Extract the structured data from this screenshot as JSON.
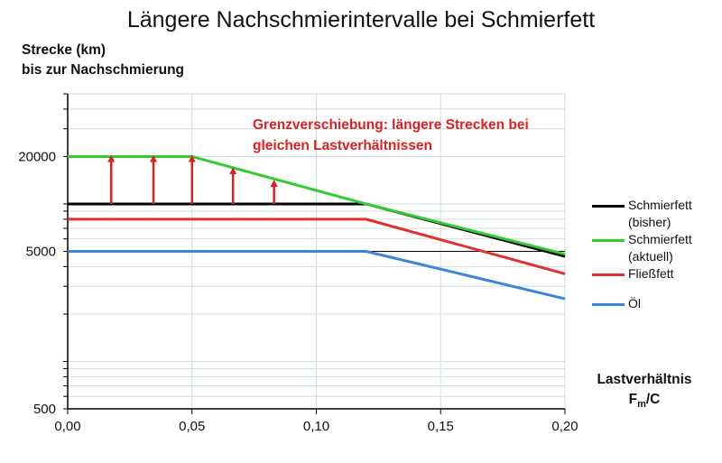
{
  "chart_data": {
    "type": "line",
    "title": "Längere Nachschmierintervalle bei Schmierfett",
    "ylabel_line1": "Strecke (km)",
    "ylabel_line2": "bis zur Nachschmierung",
    "xlabel_line1": "Lastverhältnis",
    "xlabel_sym": "F",
    "xlabel_sub": "m",
    "xlabel_tail": "/C",
    "xlim": [
      0,
      0.2
    ],
    "ylim": [
      500,
      50000
    ],
    "yscale": "log",
    "x_ticks": [
      0,
      0.05,
      0.1,
      0.15,
      0.2
    ],
    "x_tick_labels": [
      "0,00",
      "0,05",
      "0,10",
      "0,15",
      "0,20"
    ],
    "y_ticks": [
      500,
      5000,
      20000
    ],
    "y_tick_labels": [
      "500",
      "5000",
      "20000"
    ],
    "grid": true,
    "legend_position": "right",
    "annotation": {
      "line1": "Grenzverschiebung: längere Strecken bei",
      "line2": "gleichen Lastverhältnissen",
      "color": "#e02020"
    },
    "arrows": [
      {
        "x": 0.0175,
        "y_from": 10000,
        "y_to": 20000
      },
      {
        "x": 0.0345,
        "y_from": 10000,
        "y_to": 20000
      },
      {
        "x": 0.05,
        "y_from": 10000,
        "y_to": 20000
      },
      {
        "x": 0.0665,
        "y_from": 10000,
        "y_to": 16700
      },
      {
        "x": 0.083,
        "y_from": 10000,
        "y_to": 13900
      }
    ],
    "series": [
      {
        "name_line1": "Schmierfett",
        "name_line2": "(bisher)",
        "color": "#000000",
        "x": [
          0,
          0.12,
          0.2
        ],
        "y": [
          10000,
          10000,
          4650
        ]
      },
      {
        "name_line1": "Schmierfett",
        "name_line2": "(aktuell)",
        "color": "#33cc33",
        "x": [
          0,
          0.05,
          0.12,
          0.2
        ],
        "y": [
          20000,
          20000,
          10000,
          4800
        ]
      },
      {
        "name_line1": "Fließfett",
        "name_line2": "",
        "color": "#e03030",
        "x": [
          0,
          0.12,
          0.2
        ],
        "y": [
          8000,
          8000,
          3600
        ]
      },
      {
        "name_line1": "Öl",
        "name_line2": "",
        "color": "#3a86d8",
        "x": [
          0,
          0.12,
          0.2
        ],
        "y": [
          5000,
          5000,
          2500
        ]
      }
    ]
  }
}
